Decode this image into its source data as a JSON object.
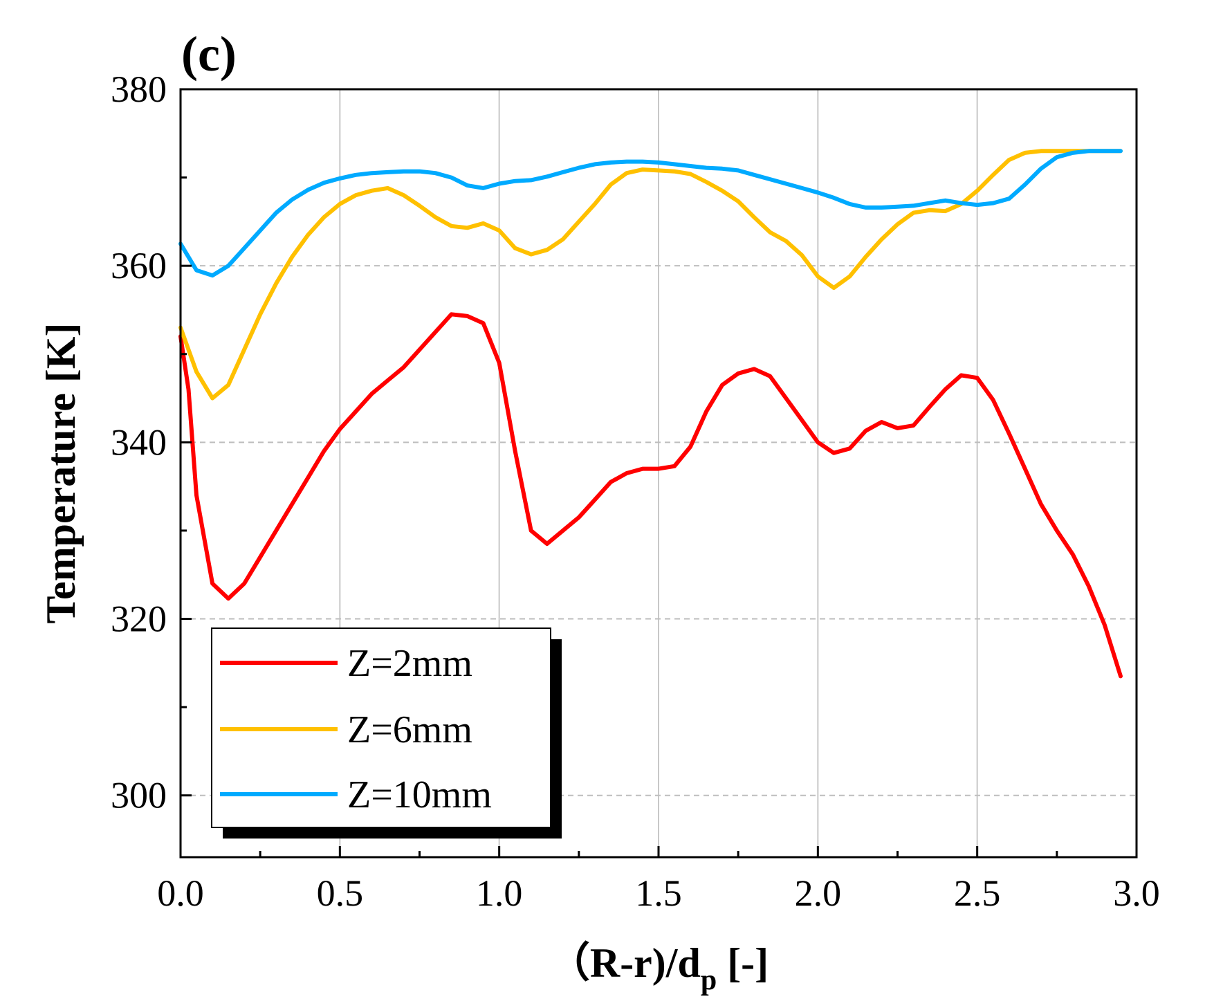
{
  "chart_data": {
    "type": "line",
    "panel_label": "(c)",
    "xlabel_main": "（R-r)/d",
    "xlabel_sub": "p",
    "xlabel_tail": " [-]",
    "ylabel": "Temperature [K]",
    "xlim": [
      0.0,
      3.0
    ],
    "ylim": [
      293,
      380
    ],
    "xticks": [
      "0.0",
      "0.5",
      "1.0",
      "1.5",
      "2.0",
      "2.5",
      "3.0"
    ],
    "yticks": [
      "300",
      "320",
      "340",
      "360",
      "380"
    ],
    "grid": true,
    "legend_position": "bottom-left",
    "series": [
      {
        "name": "Z=2mm",
        "color": "#ff0000",
        "x": [
          0.0,
          0.025,
          0.05,
          0.1,
          0.15,
          0.2,
          0.25,
          0.3,
          0.35,
          0.4,
          0.45,
          0.5,
          0.55,
          0.6,
          0.65,
          0.7,
          0.75,
          0.8,
          0.85,
          0.9,
          0.95,
          1.0,
          1.05,
          1.1,
          1.15,
          1.2,
          1.25,
          1.3,
          1.35,
          1.4,
          1.45,
          1.5,
          1.55,
          1.6,
          1.65,
          1.7,
          1.75,
          1.8,
          1.85,
          1.9,
          1.95,
          2.0,
          2.05,
          2.1,
          2.15,
          2.2,
          2.25,
          2.3,
          2.35,
          2.4,
          2.45,
          2.5,
          2.55,
          2.6,
          2.65,
          2.7,
          2.75,
          2.8,
          2.85,
          2.9,
          2.95
        ],
        "values": [
          352,
          346,
          334,
          324,
          322.3,
          324,
          327,
          330,
          333,
          336,
          339,
          341.5,
          343.5,
          345.5,
          347,
          348.5,
          350.5,
          352.5,
          354.5,
          354.3,
          353.5,
          349,
          339,
          330,
          328.5,
          330,
          331.5,
          333.5,
          335.5,
          336.5,
          337,
          337,
          337.3,
          339.5,
          343.5,
          346.5,
          347.8,
          348.3,
          347.5,
          345,
          342.5,
          340,
          338.8,
          339.3,
          341.3,
          342.3,
          341.6,
          341.9,
          344,
          346,
          347.6,
          347.3,
          344.8,
          341,
          337,
          333,
          330,
          327.3,
          323.7,
          319.3,
          313.5
        ]
      },
      {
        "name": "Z=6mm",
        "color": "#ffc000",
        "x": [
          0.0,
          0.05,
          0.1,
          0.15,
          0.2,
          0.25,
          0.3,
          0.35,
          0.4,
          0.45,
          0.5,
          0.55,
          0.6,
          0.65,
          0.7,
          0.75,
          0.8,
          0.85,
          0.9,
          0.95,
          1.0,
          1.05,
          1.1,
          1.15,
          1.2,
          1.25,
          1.3,
          1.35,
          1.4,
          1.45,
          1.5,
          1.55,
          1.6,
          1.65,
          1.7,
          1.75,
          1.8,
          1.85,
          1.9,
          1.95,
          2.0,
          2.05,
          2.1,
          2.15,
          2.2,
          2.25,
          2.3,
          2.35,
          2.4,
          2.45,
          2.5,
          2.55,
          2.6,
          2.65,
          2.7,
          2.75,
          2.8,
          2.85,
          2.9,
          2.95
        ],
        "values": [
          353,
          348,
          345,
          346.5,
          350.5,
          354.5,
          358,
          361,
          363.5,
          365.5,
          367,
          368,
          368.5,
          368.8,
          368,
          366.8,
          365.5,
          364.5,
          364.3,
          364.8,
          364,
          362,
          361.3,
          361.8,
          363,
          365,
          367,
          369.2,
          370.5,
          370.9,
          370.8,
          370.7,
          370.4,
          369.5,
          368.5,
          367.3,
          365.5,
          363.8,
          362.8,
          361.2,
          358.8,
          357.5,
          358.8,
          361,
          363,
          364.7,
          366,
          366.3,
          366.2,
          367,
          368.5,
          370.3,
          372,
          372.8,
          373,
          373,
          373,
          373,
          373,
          373
        ]
      },
      {
        "name": "Z=10mm",
        "color": "#00aaff",
        "x": [
          0.0,
          0.05,
          0.1,
          0.15,
          0.2,
          0.25,
          0.3,
          0.35,
          0.4,
          0.45,
          0.5,
          0.55,
          0.6,
          0.65,
          0.7,
          0.75,
          0.8,
          0.85,
          0.9,
          0.95,
          1.0,
          1.05,
          1.1,
          1.15,
          1.2,
          1.25,
          1.3,
          1.35,
          1.4,
          1.45,
          1.5,
          1.55,
          1.6,
          1.65,
          1.7,
          1.75,
          1.8,
          1.85,
          1.9,
          1.95,
          2.0,
          2.05,
          2.1,
          2.15,
          2.2,
          2.25,
          2.3,
          2.35,
          2.4,
          2.45,
          2.5,
          2.55,
          2.6,
          2.65,
          2.7,
          2.75,
          2.8,
          2.85,
          2.9,
          2.95
        ],
        "values": [
          362.5,
          359.5,
          358.9,
          360,
          362,
          364,
          366,
          367.5,
          368.6,
          369.4,
          369.9,
          370.3,
          370.5,
          370.6,
          370.7,
          370.7,
          370.5,
          370,
          369.1,
          368.8,
          369.3,
          369.6,
          369.7,
          370.1,
          370.6,
          371.1,
          371.5,
          371.7,
          371.8,
          371.8,
          371.7,
          371.5,
          371.3,
          371.1,
          371,
          370.8,
          370.3,
          369.8,
          369.3,
          368.8,
          368.3,
          367.7,
          367,
          366.6,
          366.6,
          366.7,
          366.8,
          367.1,
          367.4,
          367.1,
          366.9,
          367.1,
          367.6,
          369.2,
          371,
          372.3,
          372.8,
          373,
          373,
          373
        ]
      }
    ]
  }
}
